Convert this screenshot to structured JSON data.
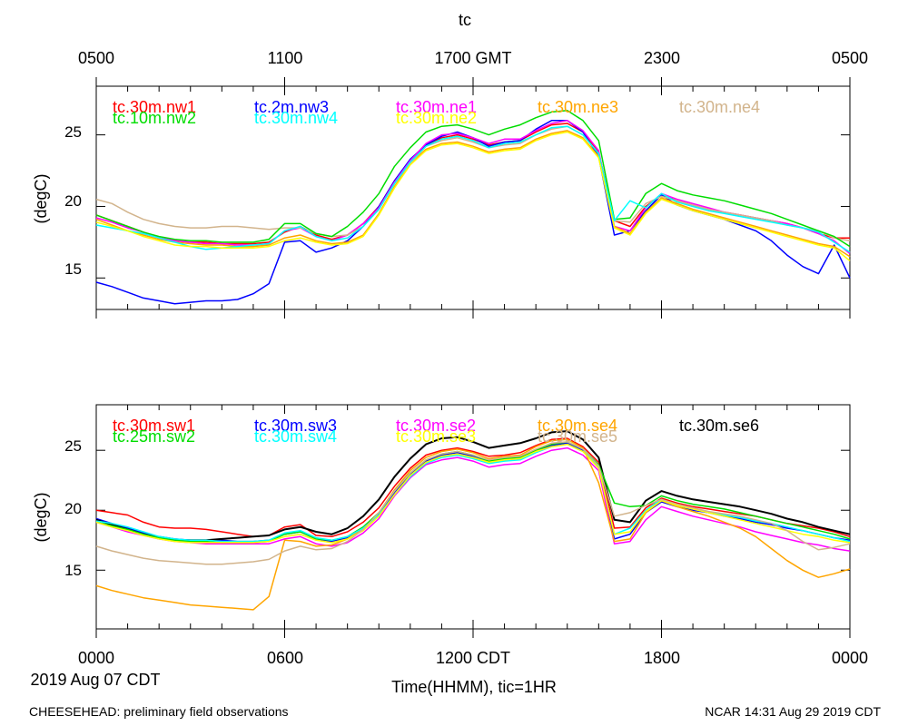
{
  "title": "tc",
  "top_axis_labels": [
    "0500",
    "1100",
    "1700 GMT",
    "2300",
    "0500"
  ],
  "bottom_axis_labels": [
    "0000",
    "0600",
    "1200 CDT",
    "1800",
    "0000"
  ],
  "date_label": "2019 Aug 07 CDT",
  "xlabel": "Time(HHMM), tic=1HR",
  "footer_left": "CHEESEHEAD: preliminary field observations",
  "footer_right": "NCAR 14:31 Aug 29 2019 CDT",
  "chart_data": [
    {
      "type": "line",
      "ylabel": "(degC)",
      "ylim": [
        12.8,
        28.4
      ],
      "xlim": [
        0,
        24
      ],
      "yticks": [
        15,
        20,
        25
      ],
      "ytick_labels": [
        "15",
        "20",
        "25"
      ],
      "x": [
        0,
        0.5,
        1,
        1.5,
        2,
        2.5,
        3,
        3.5,
        4,
        4.5,
        5,
        5.5,
        6,
        6.5,
        7,
        7.5,
        8,
        8.5,
        9,
        9.5,
        10,
        10.5,
        11,
        11.5,
        12,
        12.5,
        13,
        13.5,
        14,
        14.5,
        15,
        15.5,
        16,
        16.5,
        17,
        17.5,
        18,
        18.5,
        19,
        19.5,
        20,
        20.5,
        21,
        21.5,
        22,
        22.5,
        23,
        23.5,
        24
      ],
      "series": [
        {
          "name": "tc.30m.nw1",
          "color": "#ff0000",
          "values": [
            19.4,
            19.0,
            18.6,
            18.2,
            17.8,
            17.6,
            17.5,
            17.5,
            17.4,
            17.4,
            17.4,
            17.5,
            18.2,
            18.6,
            18.0,
            17.7,
            18.0,
            18.8,
            20.0,
            21.8,
            23.2,
            24.3,
            24.8,
            25.0,
            24.7,
            24.3,
            24.5,
            24.6,
            25.2,
            25.7,
            25.8,
            25.2,
            23.8,
            19.0,
            18.6,
            20.0,
            20.8,
            20.4,
            20.1,
            19.8,
            19.6,
            19.4,
            19.2,
            19.0,
            18.8,
            18.5,
            18.1,
            17.8,
            17.8
          ]
        },
        {
          "name": "tc.2m.nw3",
          "color": "#0000ff",
          "values": [
            14.7,
            14.4,
            14.0,
            13.6,
            13.4,
            13.2,
            13.3,
            13.4,
            13.4,
            13.5,
            13.9,
            14.6,
            17.5,
            17.6,
            16.8,
            17.1,
            17.6,
            18.6,
            20.0,
            21.8,
            23.3,
            24.3,
            24.9,
            25.2,
            24.8,
            24.2,
            24.5,
            24.6,
            25.4,
            26.0,
            26.0,
            25.2,
            23.5,
            18.0,
            18.3,
            19.7,
            20.8,
            20.1,
            19.7,
            19.4,
            19.1,
            18.7,
            18.3,
            17.6,
            16.6,
            15.8,
            15.3,
            17.3,
            15.0
          ]
        },
        {
          "name": "tc.30m.ne1",
          "color": "#ff00ff",
          "values": [
            19.2,
            18.9,
            18.5,
            18.2,
            17.8,
            17.6,
            17.5,
            17.4,
            17.4,
            17.3,
            17.3,
            17.4,
            18.3,
            18.5,
            17.9,
            17.6,
            18.0,
            18.8,
            19.9,
            21.7,
            23.2,
            24.4,
            25.0,
            25.1,
            24.8,
            24.4,
            24.7,
            24.7,
            25.3,
            25.8,
            26.0,
            25.3,
            23.9,
            18.6,
            18.3,
            19.9,
            20.9,
            20.5,
            20.2,
            19.9,
            19.6,
            19.4,
            19.2,
            19.0,
            18.8,
            18.5,
            18.1,
            17.6,
            16.7
          ]
        },
        {
          "name": "tc.30m.ne3",
          "color": "#ffa500",
          "values": [
            19.1,
            18.7,
            18.3,
            18.0,
            17.7,
            17.5,
            17.4,
            17.3,
            17.3,
            17.2,
            17.2,
            17.3,
            17.8,
            18.0,
            17.6,
            17.4,
            17.5,
            18.0,
            19.5,
            21.4,
            23.0,
            24.0,
            24.4,
            24.5,
            24.2,
            23.8,
            24.0,
            24.1,
            24.7,
            25.1,
            25.3,
            24.8,
            23.5,
            18.6,
            18.1,
            19.6,
            20.6,
            20.2,
            19.8,
            19.5,
            19.2,
            18.9,
            18.6,
            18.3,
            18.0,
            17.7,
            17.4,
            17.2,
            16.5
          ]
        },
        {
          "name": "tc.30m.ne4",
          "color": "#d2b48c",
          "values": [
            20.5,
            20.2,
            19.6,
            19.1,
            18.8,
            18.6,
            18.5,
            18.5,
            18.6,
            18.6,
            18.5,
            18.4,
            18.5,
            18.5,
            18.1,
            17.9,
            18.0,
            18.6,
            19.8,
            21.6,
            23.0,
            24.2,
            24.6,
            24.8,
            24.5,
            24.1,
            24.3,
            24.4,
            25.0,
            25.4,
            25.6,
            25.0,
            23.7,
            19.0,
            18.9,
            20.2,
            20.7,
            20.4,
            20.1,
            19.8,
            19.6,
            19.4,
            19.2,
            19.0,
            18.7,
            18.5,
            18.3,
            17.8,
            17.6
          ]
        },
        {
          "name": "tc.10m.nw2",
          "color": "#00dd00",
          "values": [
            19.4,
            19.0,
            18.6,
            18.2,
            17.9,
            17.7,
            17.6,
            17.6,
            17.5,
            17.5,
            17.5,
            17.7,
            18.8,
            18.8,
            18.1,
            17.9,
            18.6,
            19.6,
            20.9,
            22.8,
            24.1,
            25.2,
            25.6,
            25.7,
            25.4,
            25.0,
            25.4,
            25.7,
            26.2,
            26.6,
            26.7,
            26.0,
            24.6,
            19.1,
            19.2,
            20.9,
            21.6,
            21.1,
            20.8,
            20.6,
            20.4,
            20.1,
            19.8,
            19.5,
            19.1,
            18.7,
            18.3,
            17.9,
            17.2
          ]
        },
        {
          "name": "tc.30m.nw4",
          "color": "#00ffff",
          "values": [
            18.7,
            18.5,
            18.3,
            18.1,
            17.8,
            17.5,
            17.2,
            17.0,
            17.1,
            17.2,
            17.3,
            17.4,
            18.3,
            18.6,
            17.9,
            17.6,
            17.8,
            18.6,
            19.8,
            21.6,
            23.1,
            24.2,
            24.7,
            24.9,
            24.6,
            24.1,
            24.4,
            24.5,
            25.0,
            25.5,
            25.6,
            25.0,
            23.7,
            19.0,
            20.4,
            19.9,
            20.9,
            20.3,
            20.0,
            19.7,
            19.5,
            19.3,
            19.1,
            18.9,
            18.7,
            18.5,
            18.2,
            17.5,
            16.8
          ]
        },
        {
          "name": "tc.30m.ne2",
          "color": "#ffff00",
          "values": [
            18.9,
            18.6,
            18.3,
            17.9,
            17.6,
            17.3,
            17.2,
            17.2,
            17.1,
            17.1,
            17.1,
            17.2,
            17.6,
            17.8,
            17.5,
            17.3,
            17.4,
            17.9,
            19.4,
            21.3,
            22.9,
            23.9,
            24.3,
            24.4,
            24.1,
            23.7,
            23.9,
            24.0,
            24.6,
            25.0,
            25.2,
            24.7,
            23.4,
            18.5,
            18.0,
            19.5,
            20.5,
            20.1,
            19.7,
            19.4,
            19.1,
            18.8,
            18.5,
            18.2,
            17.9,
            17.6,
            17.3,
            17.1,
            16.2
          ]
        }
      ]
    },
    {
      "type": "line",
      "ylabel": "(degC)",
      "ylim": [
        10.1,
        28.8
      ],
      "xlim": [
        0,
        24
      ],
      "yticks": [
        15,
        20,
        25
      ],
      "ytick_labels": [
        "15",
        "20",
        "25"
      ],
      "x": [
        0,
        0.5,
        1,
        1.5,
        2,
        2.5,
        3,
        3.5,
        4,
        4.5,
        5,
        5.5,
        6,
        6.5,
        7,
        7.5,
        8,
        8.5,
        9,
        9.5,
        10,
        10.5,
        11,
        11.5,
        12,
        12.5,
        13,
        13.5,
        14,
        14.5,
        15,
        15.5,
        16,
        16.5,
        17,
        17.5,
        18,
        18.5,
        19,
        19.5,
        20,
        20.5,
        21,
        21.5,
        22,
        22.5,
        23,
        23.5,
        24
      ],
      "series": [
        {
          "name": "tc.30m.sw1",
          "color": "#ff0000",
          "values": [
            20.0,
            19.8,
            19.6,
            19.0,
            18.6,
            18.5,
            18.5,
            18.4,
            18.2,
            18.0,
            17.8,
            17.9,
            18.6,
            18.8,
            17.9,
            17.8,
            18.2,
            19.0,
            20.2,
            22.0,
            23.5,
            24.6,
            25.0,
            25.2,
            24.9,
            24.5,
            24.6,
            24.8,
            25.4,
            25.9,
            26.0,
            25.3,
            24.0,
            18.5,
            18.6,
            20.2,
            21.0,
            20.6,
            20.3,
            20.1,
            19.9,
            19.7,
            19.5,
            19.2,
            18.9,
            18.7,
            18.5,
            18.2,
            17.8
          ]
        },
        {
          "name": "tc.30m.sw3",
          "color": "#0000ff",
          "values": [
            19.3,
            18.9,
            18.5,
            18.1,
            17.8,
            17.6,
            17.5,
            17.5,
            17.5,
            17.4,
            17.4,
            17.5,
            18.0,
            18.2,
            17.6,
            17.4,
            17.7,
            18.5,
            19.7,
            21.5,
            23.0,
            24.1,
            24.6,
            24.8,
            24.5,
            24.0,
            24.2,
            24.3,
            24.9,
            25.4,
            25.6,
            25.0,
            23.6,
            17.6,
            18.0,
            19.8,
            20.7,
            20.3,
            20.0,
            19.8,
            19.5,
            19.3,
            19.0,
            18.8,
            18.5,
            18.3,
            18.0,
            17.7,
            17.5
          ]
        },
        {
          "name": "tc.30m.se2",
          "color": "#ff00ff",
          "values": [
            19.0,
            18.6,
            18.2,
            17.9,
            17.6,
            17.4,
            17.3,
            17.2,
            17.2,
            17.2,
            17.2,
            17.2,
            17.6,
            17.8,
            17.2,
            17.0,
            17.3,
            18.1,
            19.3,
            21.2,
            22.7,
            23.8,
            24.2,
            24.4,
            24.1,
            23.6,
            23.8,
            23.9,
            24.5,
            25.0,
            25.2,
            24.6,
            23.3,
            17.2,
            17.4,
            19.2,
            20.3,
            19.9,
            19.5,
            19.2,
            18.9,
            18.6,
            18.2,
            17.9,
            17.6,
            17.3,
            17.1,
            16.8,
            16.6
          ]
        },
        {
          "name": "tc.30m.se4",
          "color": "#ffa500",
          "values": [
            13.7,
            13.3,
            13.0,
            12.7,
            12.5,
            12.3,
            12.1,
            12.0,
            11.9,
            11.8,
            11.7,
            12.8,
            17.5,
            17.4,
            17.0,
            17.1,
            17.6,
            18.5,
            19.8,
            21.7,
            23.3,
            24.4,
            24.9,
            25.1,
            24.8,
            24.3,
            24.5,
            24.6,
            25.3,
            25.8,
            25.9,
            25.2,
            22.3,
            17.4,
            17.6,
            19.8,
            20.8,
            20.3,
            19.9,
            19.5,
            19.0,
            18.5,
            17.8,
            16.8,
            15.8,
            15.0,
            14.4,
            14.7,
            15.1
          ]
        },
        {
          "name": "tc.30m.se6",
          "color": "#000000",
          "values": [
            19.2,
            18.8,
            18.4,
            18.0,
            17.7,
            17.5,
            17.5,
            17.5,
            17.6,
            17.7,
            17.8,
            17.9,
            18.4,
            18.6,
            18.2,
            18.0,
            18.5,
            19.5,
            20.9,
            22.8,
            24.3,
            25.5,
            26.0,
            26.1,
            25.7,
            25.2,
            25.4,
            25.6,
            26.0,
            26.5,
            26.6,
            25.9,
            24.4,
            19.2,
            19.0,
            20.8,
            21.6,
            21.2,
            20.9,
            20.7,
            20.5,
            20.3,
            20.0,
            19.7,
            19.3,
            19.0,
            18.6,
            18.3,
            18.0
          ]
        },
        {
          "name": "tc.25m.sw2",
          "color": "#00dd00",
          "values": [
            19.0,
            18.7,
            18.4,
            18.0,
            17.7,
            17.5,
            17.4,
            17.4,
            17.3,
            17.3,
            17.3,
            17.4,
            18.0,
            18.2,
            17.6,
            17.5,
            17.8,
            18.6,
            19.8,
            21.6,
            23.1,
            24.2,
            24.7,
            24.9,
            24.6,
            24.1,
            24.3,
            24.4,
            25.0,
            25.5,
            25.7,
            25.1,
            23.8,
            20.6,
            20.3,
            20.4,
            21.2,
            20.8,
            20.5,
            20.3,
            20.1,
            19.8,
            19.5,
            19.2,
            18.9,
            18.6,
            18.3,
            18.0,
            17.6
          ]
        },
        {
          "name": "tc.30m.sw4",
          "color": "#00ffff",
          "values": [
            19.1,
            18.9,
            18.6,
            18.2,
            17.8,
            17.6,
            17.5,
            17.5,
            17.4,
            17.4,
            17.4,
            17.5,
            18.1,
            18.3,
            17.7,
            17.5,
            17.8,
            18.5,
            19.6,
            21.3,
            22.8,
            23.9,
            24.4,
            24.6,
            24.3,
            23.9,
            24.1,
            24.2,
            24.8,
            25.3,
            25.5,
            24.9,
            23.6,
            18.0,
            18.5,
            20.0,
            20.9,
            20.4,
            20.1,
            19.8,
            19.6,
            19.4,
            19.1,
            18.9,
            18.6,
            18.3,
            18.0,
            17.7,
            17.4
          ]
        },
        {
          "name": "tc.30m.se3",
          "color": "#ffff00",
          "values": [
            19.0,
            18.6,
            18.3,
            17.9,
            17.6,
            17.4,
            17.3,
            17.3,
            17.3,
            17.3,
            17.3,
            17.4,
            17.8,
            18.0,
            17.5,
            17.3,
            17.6,
            18.3,
            19.5,
            21.3,
            22.9,
            24.0,
            24.5,
            24.7,
            24.4,
            24.0,
            24.2,
            24.3,
            24.9,
            25.3,
            25.5,
            24.9,
            23.5,
            18.0,
            18.2,
            19.9,
            20.8,
            20.4,
            20.1,
            19.8,
            19.5,
            19.2,
            18.9,
            18.6,
            18.3,
            18.0,
            17.8,
            17.5,
            17.3
          ]
        },
        {
          "name": "tc.30m.se5",
          "color": "#d2b48c",
          "values": [
            17.0,
            16.6,
            16.3,
            16.0,
            15.8,
            15.7,
            15.6,
            15.5,
            15.5,
            15.6,
            15.7,
            15.9,
            16.6,
            17.0,
            16.7,
            16.8,
            17.4,
            18.4,
            19.8,
            21.6,
            23.1,
            24.2,
            24.7,
            24.9,
            24.6,
            24.2,
            24.4,
            24.5,
            25.1,
            25.6,
            25.7,
            25.1,
            23.7,
            19.5,
            19.8,
            20.4,
            20.9,
            20.5,
            20.2,
            19.9,
            19.7,
            19.5,
            19.2,
            18.9,
            18.3,
            17.4,
            16.7,
            16.9,
            17.2
          ]
        }
      ]
    }
  ]
}
